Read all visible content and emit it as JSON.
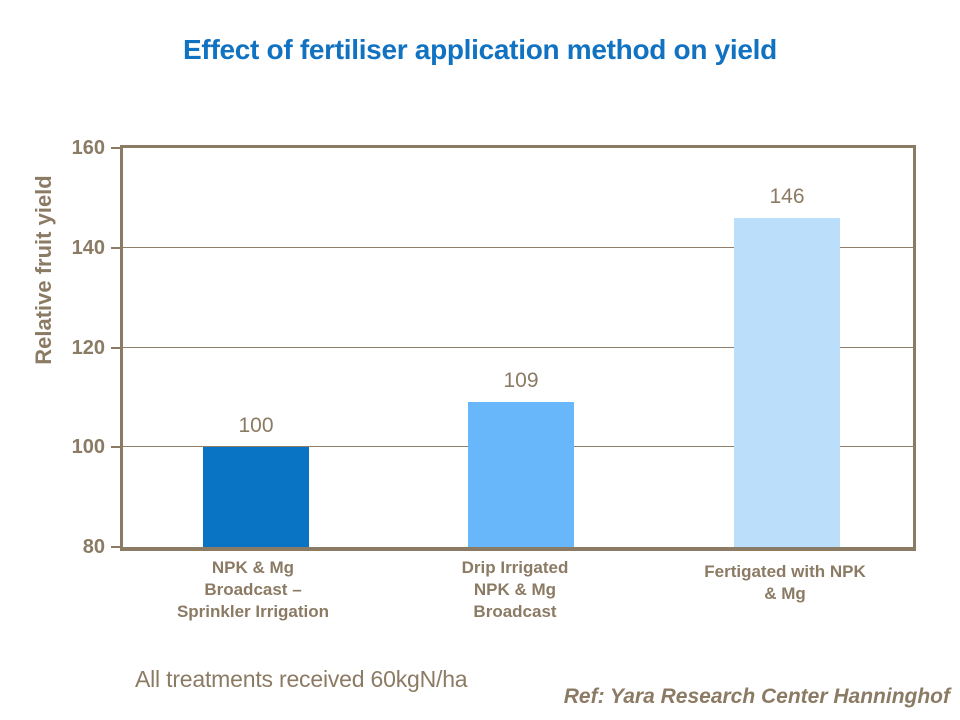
{
  "slide": {
    "title": "Effect of fertiliser application method on yield",
    "footnote": "All treatments received 60kgN/ha",
    "reference": "Ref: Yara Research Center Hanninghof"
  },
  "colors": {
    "title_blue": "#1272C2",
    "axis_brown": "#8C7B64",
    "grid_brown": "#8F7F6A",
    "background": "#FFFFFF",
    "bar_colors": [
      "#0A74C4",
      "#67B7FA",
      "#BBDEFB"
    ]
  },
  "chart_data": {
    "type": "bar",
    "title": "Effect of fertiliser application method on yield",
    "ylabel": "Relative fruit yield",
    "xlabel": "",
    "ylim": [
      80,
      160
    ],
    "yticks": [
      80,
      100,
      120,
      140,
      160
    ],
    "grid": "horizontal",
    "legend": false,
    "categories": [
      "NPK & Mg\nBroadcast –\nSprinkler Irrigation",
      "Drip Irrigated\nNPK & Mg\nBroadcast",
      "Fertigated with NPK\n& Mg"
    ],
    "values": [
      100,
      109,
      146
    ],
    "value_labels": [
      "100",
      "109",
      "146"
    ],
    "annotations": [
      "All treatments received 60kgN/ha",
      "Ref: Yara Research Center Hanninghof"
    ]
  }
}
